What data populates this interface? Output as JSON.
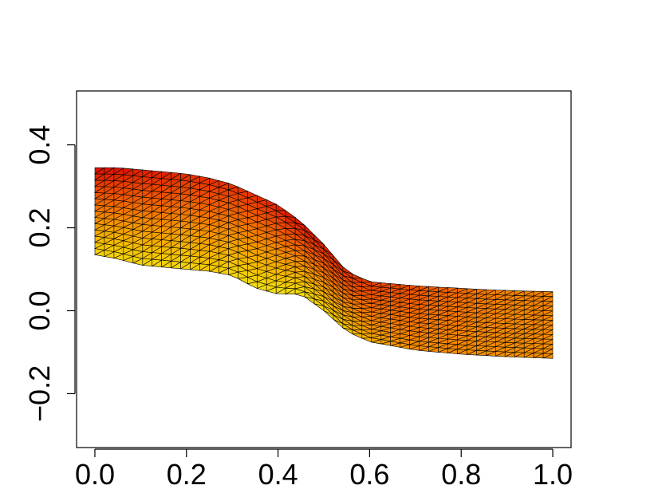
{
  "chart_data": {
    "type": "mesh",
    "title": "",
    "xlabel": "",
    "ylabel": "",
    "xlim": [
      -0.04,
      1.04
    ],
    "ylim": [
      -0.33,
      0.53
    ],
    "x_ticks": [
      0.0,
      0.2,
      0.4,
      0.6,
      0.8,
      1.0
    ],
    "x_tick_labels": [
      "0.0",
      "0.2",
      "0.4",
      "0.6",
      "0.8",
      "1.0"
    ],
    "y_ticks": [
      -0.2,
      0.0,
      0.2,
      0.4
    ],
    "y_tick_labels": [
      "−0.2",
      "0.0",
      "0.2",
      "0.4"
    ],
    "grid": false,
    "colormap": "heat (red → orange → yellow)",
    "colors": [
      "#d40000",
      "#e83a00",
      "#f26a00",
      "#f59a00",
      "#f5c400",
      "#f0e81a"
    ],
    "mesh_edge_color": "#000000",
    "mesh": {
      "x": [
        0.0,
        0.05,
        0.1,
        0.15,
        0.2,
        0.25,
        0.3,
        0.35,
        0.4,
        0.45,
        0.5,
        0.55,
        0.6,
        0.65,
        0.7,
        0.75,
        0.8,
        0.85,
        0.9,
        0.95,
        1.0
      ],
      "upper_y": [
        0.345,
        0.345,
        0.34,
        0.335,
        0.33,
        0.32,
        0.305,
        0.28,
        0.255,
        0.215,
        0.16,
        0.095,
        0.07,
        0.065,
        0.06,
        0.057,
        0.054,
        0.051,
        0.049,
        0.047,
        0.046
      ],
      "lower_y": [
        0.135,
        0.125,
        0.11,
        0.105,
        0.1,
        0.095,
        0.085,
        0.055,
        0.04,
        0.04,
        0.0,
        -0.05,
        -0.075,
        -0.085,
        -0.095,
        -0.1,
        -0.105,
        -0.108,
        -0.111,
        -0.113,
        -0.115
      ],
      "color_value_upper": [
        0.95,
        0.95,
        0.9,
        0.9,
        0.85,
        0.85,
        0.85,
        0.85,
        0.9,
        0.95,
        0.9,
        0.85,
        0.8,
        0.75,
        0.7,
        0.65,
        0.6,
        0.55,
        0.5,
        0.5,
        0.5
      ],
      "color_value_lower": [
        0.1,
        0.1,
        0.1,
        0.1,
        0.1,
        0.15,
        0.1,
        0.05,
        0.05,
        0.05,
        0.1,
        0.2,
        0.3,
        0.4,
        0.45,
        0.45,
        0.45,
        0.45,
        0.45,
        0.45,
        0.45
      ]
    }
  }
}
